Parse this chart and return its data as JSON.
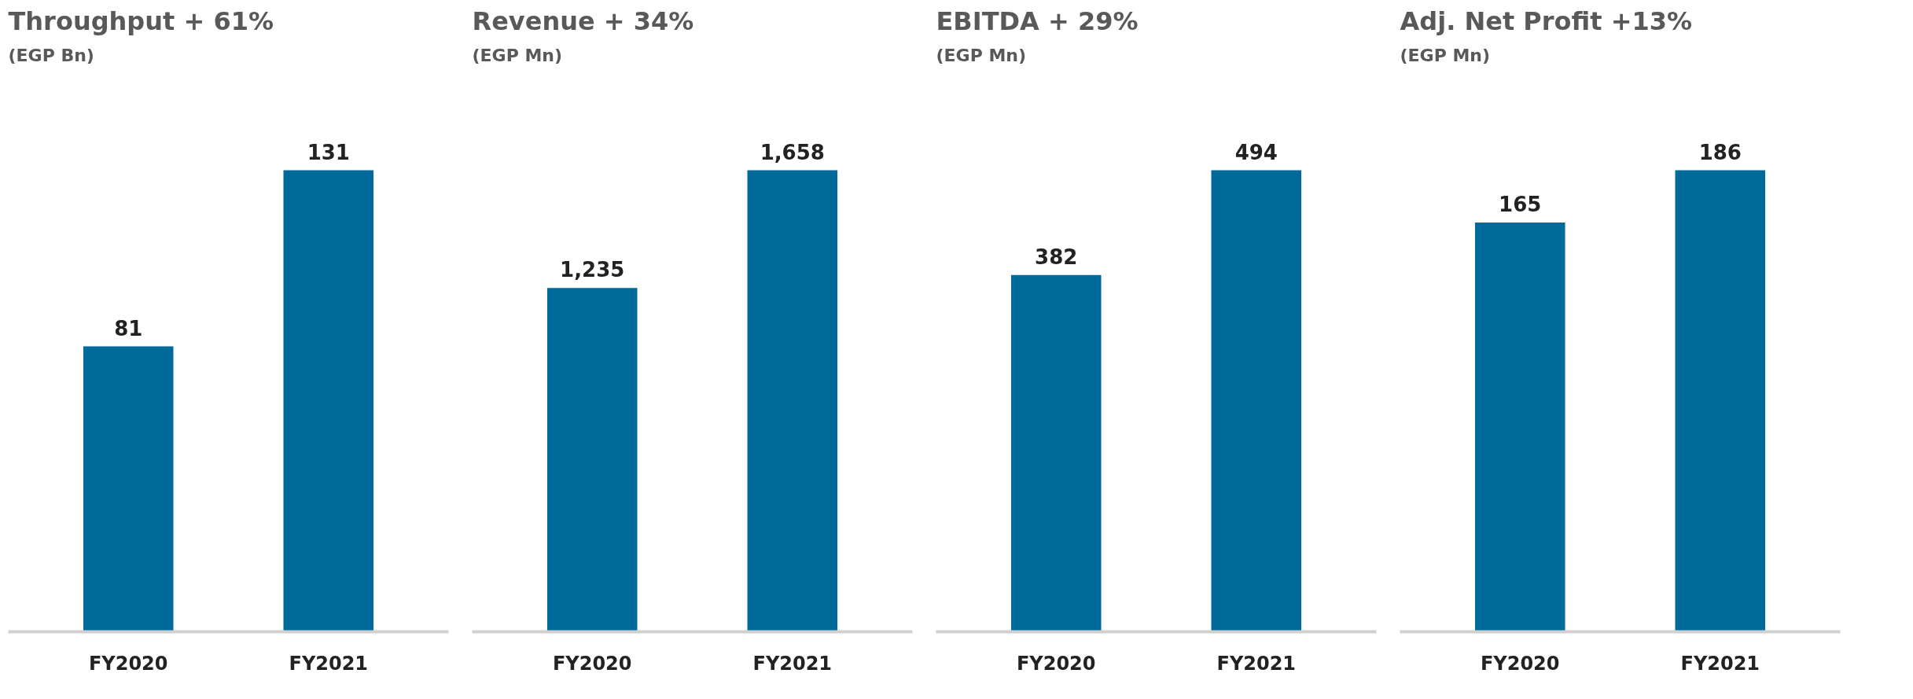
{
  "chart_data": [
    {
      "type": "bar",
      "title": "Throughput + 61%",
      "subtitle": "(EGP Bn)",
      "categories": [
        "FY2020",
        "FY2021"
      ],
      "values": [
        81,
        131
      ],
      "color": "#006a9a",
      "value_labels": [
        "81",
        "131"
      ]
    },
    {
      "type": "bar",
      "title": "Revenue + 34%",
      "subtitle": "(EGP Mn)",
      "categories": [
        "FY2020",
        "FY2021"
      ],
      "values": [
        1235,
        1658
      ],
      "color": "#006a9a",
      "value_labels": [
        "1,235",
        "1,658"
      ]
    },
    {
      "type": "bar",
      "title": "EBITDA + 29%",
      "subtitle": "(EGP Mn)",
      "categories": [
        "FY2020",
        "FY2021"
      ],
      "values": [
        382,
        494
      ],
      "color": "#006a9a",
      "value_labels": [
        "382",
        "494"
      ]
    },
    {
      "type": "bar",
      "title": "Adj. Net Profit +13%",
      "subtitle": "(EGP Mn)",
      "categories": [
        "FY2020",
        "FY2021"
      ],
      "values": [
        165,
        186
      ],
      "color": "#006a9a",
      "value_labels": [
        "165",
        "186"
      ]
    }
  ]
}
